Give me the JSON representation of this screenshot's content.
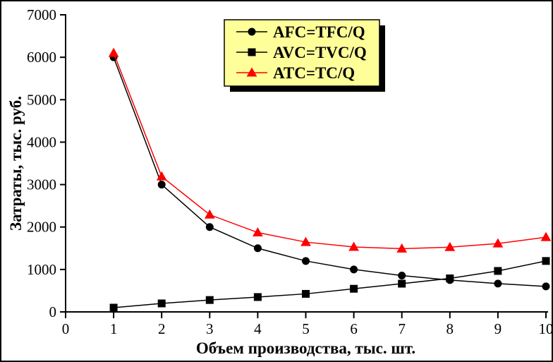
{
  "figure": {
    "background": "#ffffff",
    "border_color": "#000000"
  },
  "chart_data": {
    "type": "line",
    "title": "",
    "xlabel": "Объем производства, тыс. шт.",
    "ylabel": "Затраты, тыс. руб.",
    "xlim": [
      0,
      10
    ],
    "ylim": [
      0,
      7000
    ],
    "x_ticks": [
      0,
      1,
      2,
      3,
      4,
      5,
      6,
      7,
      8,
      9,
      10
    ],
    "y_ticks": [
      0,
      1000,
      2000,
      3000,
      4000,
      5000,
      6000,
      7000
    ],
    "grid": false,
    "legend_position": "top-center-inside",
    "legend_bg": "#ffff99",
    "legend_border": "#000000",
    "legend_shadow": "#000000",
    "x": [
      1,
      2,
      3,
      4,
      5,
      6,
      7,
      8,
      9,
      10
    ],
    "series": [
      {
        "label": "AFC=TFC/Q",
        "color": "#000000",
        "marker": "circle",
        "values": [
          6000,
          3000,
          2000,
          1500,
          1200,
          1000,
          857,
          750,
          667,
          600
        ]
      },
      {
        "label": "AVC=TVC/Q",
        "color": "#000000",
        "marker": "square",
        "values": [
          100,
          200,
          280,
          350,
          425,
          545,
          665,
          790,
          965,
          1200
        ]
      },
      {
        "label": "ATC=TC/Q",
        "color": "#ff0000",
        "marker": "triangle",
        "values": [
          6100,
          3190,
          2290,
          1870,
          1645,
          1530,
          1490,
          1525,
          1610,
          1760
        ]
      }
    ]
  }
}
